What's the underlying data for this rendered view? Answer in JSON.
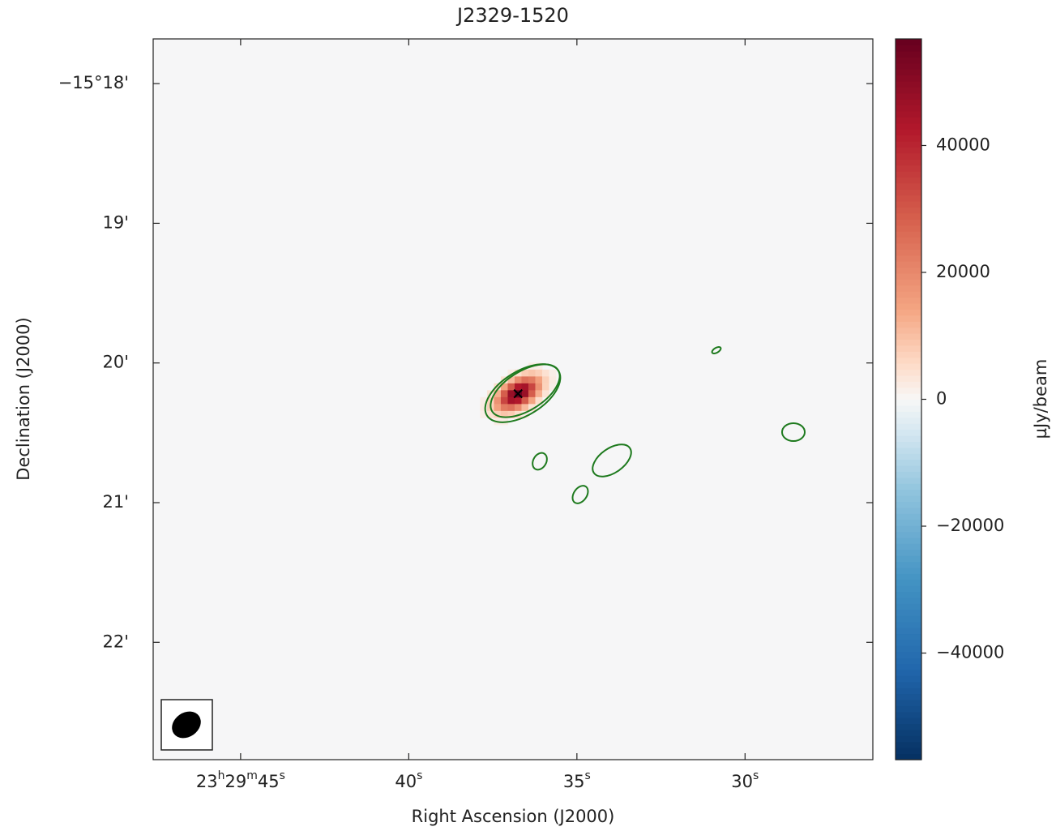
{
  "chart_data": {
    "type": "image",
    "title": "J2329-1520",
    "x_label": "Right Ascension (J2000)",
    "y_label": "Declination (J2000)",
    "colorbar_label": "µJy/beam",
    "colormap": "RdBu_r",
    "xlim": [
      47.6,
      26.2
    ],
    "xticks": [
      {
        "value": 45,
        "label": "23h29m45s"
      },
      {
        "value": 40,
        "label": "40s"
      },
      {
        "value": 35,
        "label": "35s"
      },
      {
        "value": 30,
        "label": "30s"
      }
    ],
    "ylim": [
      22.84,
      17.68
    ],
    "yticks": [
      {
        "value": 18,
        "label": "−15°18'"
      },
      {
        "value": 19,
        "label": "19'"
      },
      {
        "value": 20,
        "label": "20'"
      },
      {
        "value": 21,
        "label": "21'"
      },
      {
        "value": 22,
        "label": "22'"
      }
    ],
    "clim": [
      -56800,
      56800
    ],
    "cticks": [
      40000,
      20000,
      0,
      {
        "value": -20000,
        "label": "−20000"
      },
      {
        "value": -40000,
        "label": "−40000"
      }
    ],
    "peak": {
      "x": 36.75,
      "y": 20.22,
      "value": 56000
    }
  }
}
